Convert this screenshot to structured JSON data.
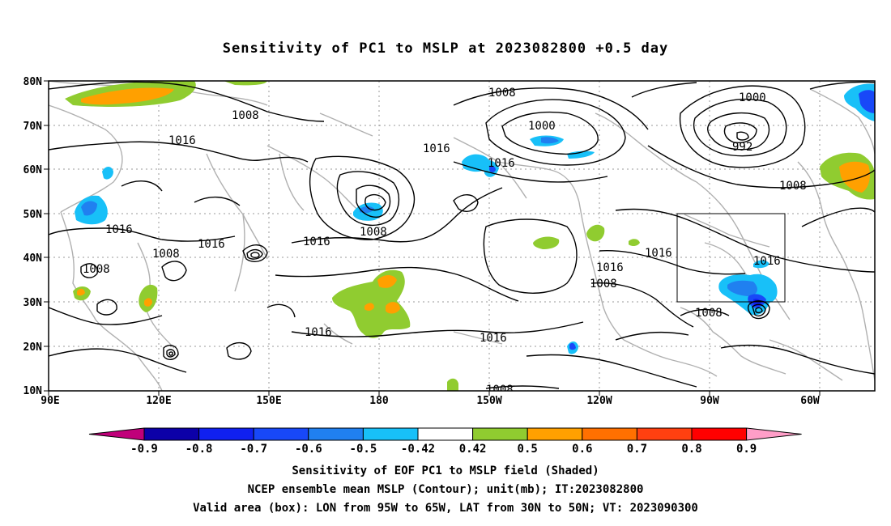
{
  "title": "Sensitivity of PC1 to MSLP at 2023082800 +0.5 day",
  "captions": {
    "line1": "Sensitivity of EOF PC1 to MSLP field (Shaded)",
    "line2": "NCEP ensemble mean MSLP (Contour); unit(mb); IT:2023082800",
    "line3": "Valid area (box): LON from 95W to 65W, LAT from 30N to 50N; VT: 2023090300"
  },
  "axes": {
    "lat_labels": [
      "80N",
      "70N",
      "60N",
      "50N",
      "40N",
      "30N",
      "20N",
      "10N"
    ],
    "lon_labels": [
      "90E",
      "120E",
      "150E",
      "180",
      "150W",
      "120W",
      "90W",
      "60W"
    ]
  },
  "contour_labels": [
    "1008",
    "1008",
    "1000",
    "1000",
    "992",
    "1016",
    "1016",
    "1008",
    "1016",
    "1016",
    "1016",
    "1016",
    "1008",
    "1008",
    "1016",
    "1016",
    "1016",
    "1016",
    "1008",
    "1008",
    "1016",
    "1008"
  ],
  "colorbar": {
    "labels": [
      "-0.9",
      "-0.8",
      "-0.7",
      "-0.6",
      "-0.5",
      "-0.42",
      "0.42",
      "0.5",
      "0.6",
      "0.7",
      "0.8",
      "0.9"
    ],
    "colors": [
      "#c0007a",
      "#0c00a8",
      "#1020f0",
      "#1848f8",
      "#2080f0",
      "#18c0f8",
      "#ffffff",
      "#90cc30",
      "#ffa000",
      "#ff7000",
      "#ff4010",
      "#ff0000",
      "#ff9ec8"
    ]
  },
  "valid_box": {
    "lon_west": "95W",
    "lon_east": "65W",
    "lat_south": "30N",
    "lat_north": "50N"
  }
}
